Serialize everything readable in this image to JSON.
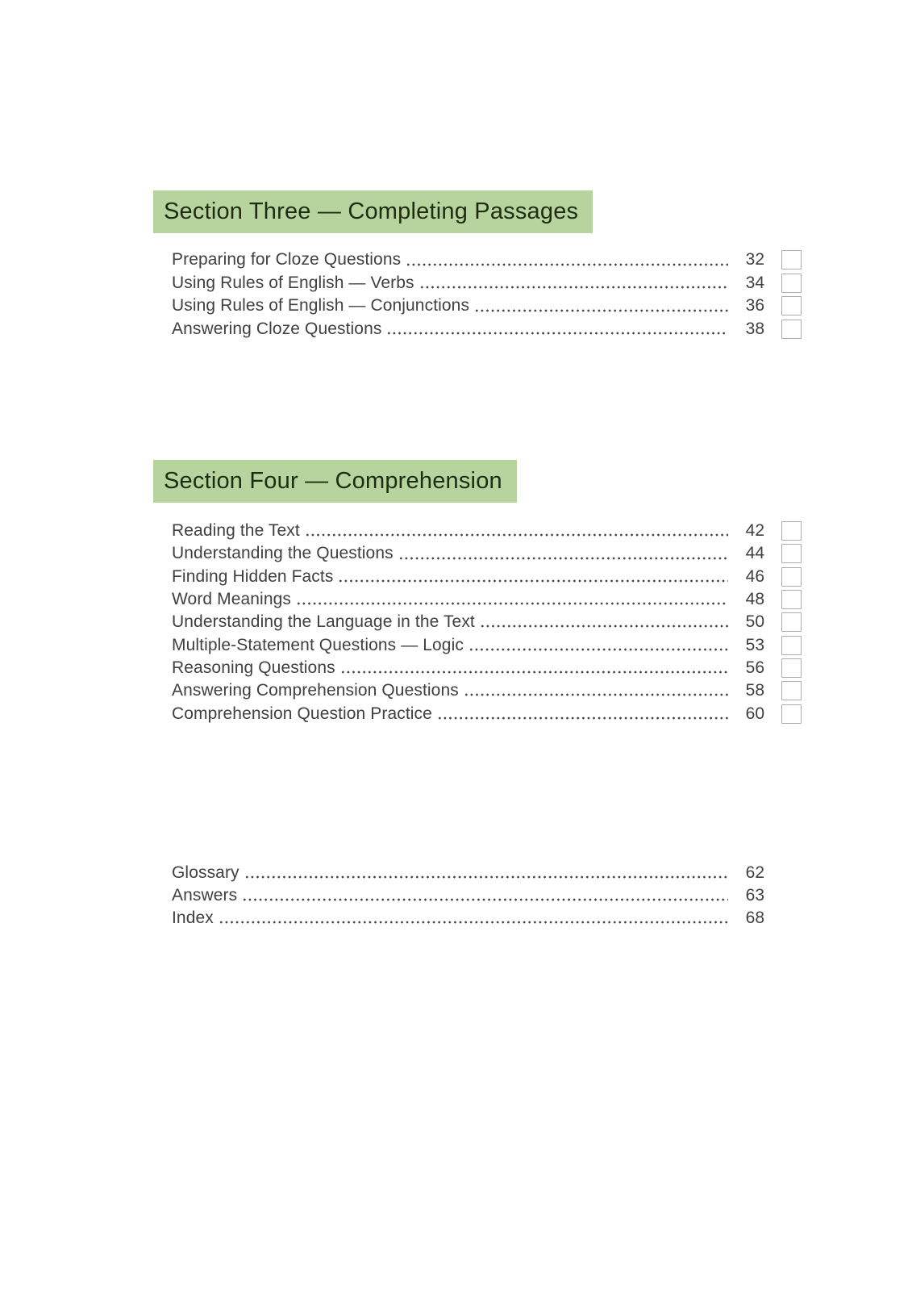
{
  "colors": {
    "section_header_bg": "#b8d49e",
    "section_header_text": "#1e2c14",
    "entry_text": "#404040",
    "dot_leader": "#434343",
    "checkbox_border": "#adadad",
    "page_bg": "#ffffff"
  },
  "sections": [
    {
      "title": "Section Three — Completing Passages",
      "entries": [
        {
          "label": "Preparing for Cloze Questions",
          "page": "32",
          "checkbox": true
        },
        {
          "label": "Using Rules of English — Verbs",
          "page": "34",
          "checkbox": true
        },
        {
          "label": "Using Rules of English — Conjunctions",
          "page": "36",
          "checkbox": true
        },
        {
          "label": "Answering Cloze Questions",
          "page": "38",
          "checkbox": true
        }
      ]
    },
    {
      "title": "Section Four — Comprehension",
      "entries": [
        {
          "label": "Reading the Text",
          "page": "42",
          "checkbox": true
        },
        {
          "label": "Understanding the Questions",
          "page": "44",
          "checkbox": true
        },
        {
          "label": "Finding Hidden Facts",
          "page": "46",
          "checkbox": true
        },
        {
          "label": "Word Meanings",
          "page": "48",
          "checkbox": true
        },
        {
          "label": "Understanding the Language in the Text",
          "page": "50",
          "checkbox": true
        },
        {
          "label": "Multiple-Statement Questions — Logic",
          "page": "53",
          "checkbox": true
        },
        {
          "label": "Reasoning Questions",
          "page": "56",
          "checkbox": true
        },
        {
          "label": "Answering Comprehension Questions",
          "page": "58",
          "checkbox": true
        },
        {
          "label": "Comprehension Question Practice",
          "page": "60",
          "checkbox": true
        }
      ]
    },
    {
      "title": "",
      "entries": [
        {
          "label": "Glossary",
          "page": "62",
          "checkbox": false
        },
        {
          "label": "Answers",
          "page": "63",
          "checkbox": false
        },
        {
          "label": "Index",
          "page": "68",
          "checkbox": false
        }
      ]
    }
  ]
}
